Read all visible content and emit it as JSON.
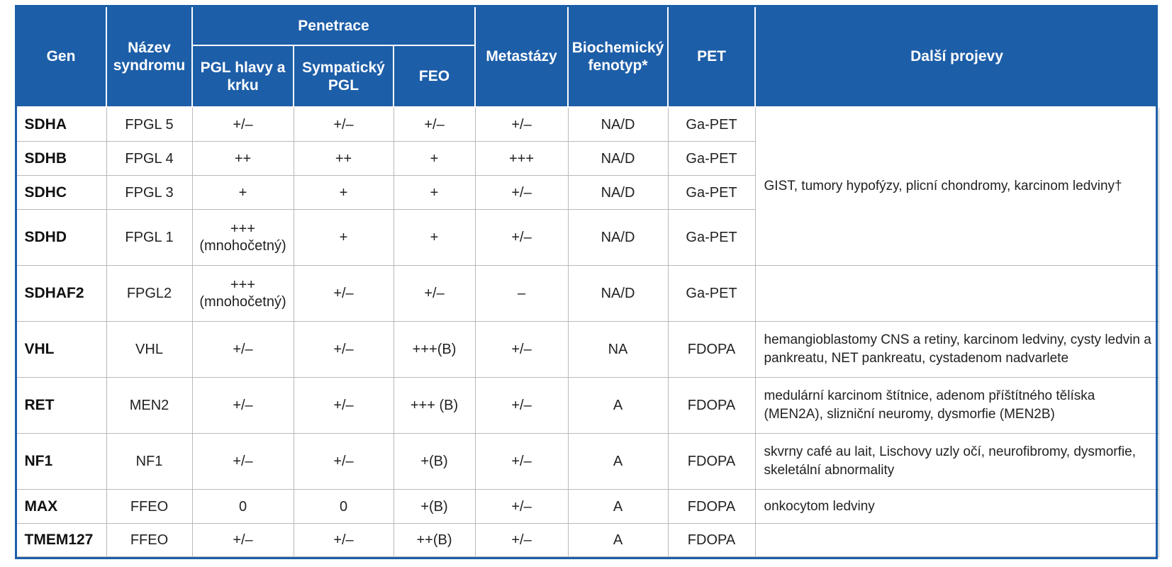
{
  "header": {
    "gen": "Gen",
    "syndrom": "Název syndromu",
    "penetrace": "Penetrace",
    "pgl_hlavy": "PGL hlavy a krku",
    "sympaticky": "Sympatický PGL",
    "feo": "FEO",
    "metastazy": "Metastázy",
    "biochemicky": "Biochemický fenotyp*",
    "pet": "PET",
    "dalsi": "Další projevy"
  },
  "rows": [
    {
      "gen": "SDHA",
      "syndrom": "FPGL 5",
      "pgl": "+/–",
      "pgl_sub": "",
      "symp": "+/–",
      "feo": "+/–",
      "meta": "+/–",
      "bio": "NA/D",
      "pet": "Ga-PET"
    },
    {
      "gen": "SDHB",
      "syndrom": "FPGL 4",
      "pgl": "++",
      "pgl_sub": "",
      "symp": "++",
      "feo": "+",
      "meta": "+++",
      "bio": "NA/D",
      "pet": "Ga-PET"
    },
    {
      "gen": "SDHC",
      "syndrom": "FPGL 3",
      "pgl": "+",
      "pgl_sub": "",
      "symp": "+",
      "feo": "+",
      "meta": "+/–",
      "bio": "NA/D",
      "pet": "Ga-PET"
    },
    {
      "gen": "SDHD",
      "syndrom": "FPGL 1",
      "pgl": "+++",
      "pgl_sub": "(mnohočetný)",
      "symp": "+",
      "feo": "+",
      "meta": "+/–",
      "bio": "NA/D",
      "pet": "Ga-PET"
    },
    {
      "gen": "SDHAF2",
      "syndrom": "FPGL2",
      "pgl": "+++",
      "pgl_sub": "(mnohočetný)",
      "symp": "+/–",
      "feo": "+/–",
      "meta": "–",
      "bio": "NA/D",
      "pet": "Ga-PET",
      "dalsi": ""
    },
    {
      "gen": "VHL",
      "syndrom": "VHL",
      "pgl": "+/–",
      "pgl_sub": "",
      "symp": "+/–",
      "feo": "+++(B)",
      "meta": "+/–",
      "bio": "NA",
      "pet": "FDOPA",
      "dalsi": "hemangioblastomy CNS a retiny, karcinom ledviny, cysty ledvin a pankreatu, NET pankreatu, cystadenom nadvarlete"
    },
    {
      "gen": "RET",
      "syndrom": "MEN2",
      "pgl": "+/–",
      "pgl_sub": "",
      "symp": "+/–",
      "feo": "+++ (B)",
      "meta": "+/–",
      "bio": "A",
      "pet": "FDOPA",
      "dalsi": "medulární karcinom štítnice, adenom příštítného tělíska (MEN2A), slizniční neuromy, dysmorfie (MEN2B)"
    },
    {
      "gen": "NF1",
      "syndrom": "NF1",
      "pgl": "+/–",
      "pgl_sub": "",
      "symp": "+/–",
      "feo": "+(B)",
      "meta": "+/–",
      "bio": "A",
      "pet": "FDOPA",
      "dalsi": "skvrny café au lait, Lischovy uzly očí, neurofibromy, dysmorfie, skeletální abnormality"
    },
    {
      "gen": "MAX",
      "syndrom": "FFEO",
      "pgl": "0",
      "pgl_sub": "",
      "symp": "0",
      "feo": "+(B)",
      "meta": "+/–",
      "bio": "A",
      "pet": "FDOPA",
      "dalsi": "onkocytom ledviny"
    },
    {
      "gen": "TMEM127",
      "syndrom": "FFEO",
      "pgl": "+/–",
      "pgl_sub": "",
      "symp": "+/–",
      "feo": "++(B)",
      "meta": "+/–",
      "bio": "A",
      "pet": "FDOPA",
      "dalsi": ""
    }
  ],
  "sdh_group_note": "GIST, tumory hypofýzy, plicní chondromy, karcinom ledviny†",
  "colors": {
    "header_bg": "#1d5ea8",
    "header_text": "#ffffff",
    "grid": "#b9b9b9"
  }
}
